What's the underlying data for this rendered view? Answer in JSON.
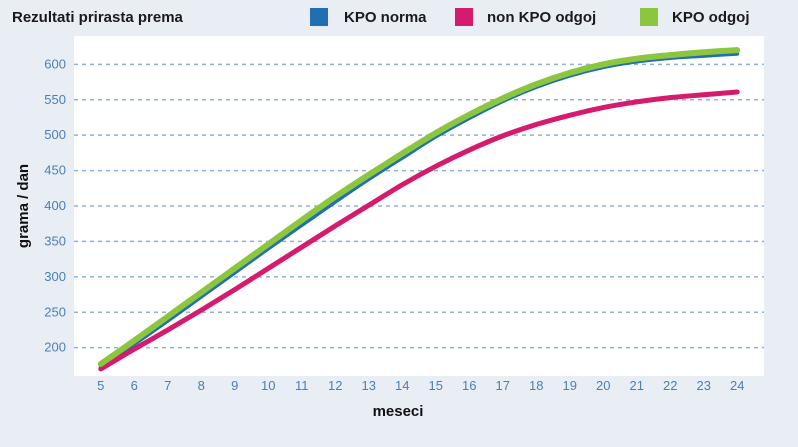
{
  "colors": {
    "background": "#e9eef4",
    "plot_area": "#ffffff",
    "grid": "#8fb2d6",
    "tick_text": "#4a7fb8"
  },
  "chart_data": {
    "type": "line",
    "title": "Rezultati prirasta prema",
    "xlabel": "meseci",
    "ylabel": "grama / dan",
    "x": [
      5,
      6,
      7,
      8,
      9,
      10,
      11,
      12,
      13,
      14,
      15,
      16,
      17,
      18,
      19,
      20,
      21,
      22,
      23,
      24
    ],
    "xlim": [
      4.2,
      24.8
    ],
    "ylim": [
      160,
      640
    ],
    "yticks": [
      200,
      250,
      300,
      350,
      400,
      450,
      500,
      550,
      600
    ],
    "grid": true,
    "legend_position": "top",
    "series": [
      {
        "name": "KPO norma",
        "color": "#1f6fb2",
        "values": [
          172,
          205,
          238,
          272,
          306,
          340,
          373,
          406,
          438,
          468,
          498,
          524,
          548,
          568,
          584,
          596,
          604,
          609,
          612,
          615
        ]
      },
      {
        "name": "non KPO odgoj",
        "color": "#d61a6e",
        "values": [
          170,
          198,
          225,
          253,
          282,
          312,
          342,
          372,
          401,
          430,
          456,
          479,
          499,
          515,
          528,
          539,
          547,
          553,
          557,
          561
        ]
      },
      {
        "name": "KPO odgoj",
        "color": "#8cc63e",
        "values": [
          177,
          210,
          244,
          278,
          312,
          346,
          380,
          413,
          444,
          474,
          503,
          529,
          552,
          572,
          588,
          600,
          608,
          613,
          617,
          620
        ]
      }
    ]
  }
}
